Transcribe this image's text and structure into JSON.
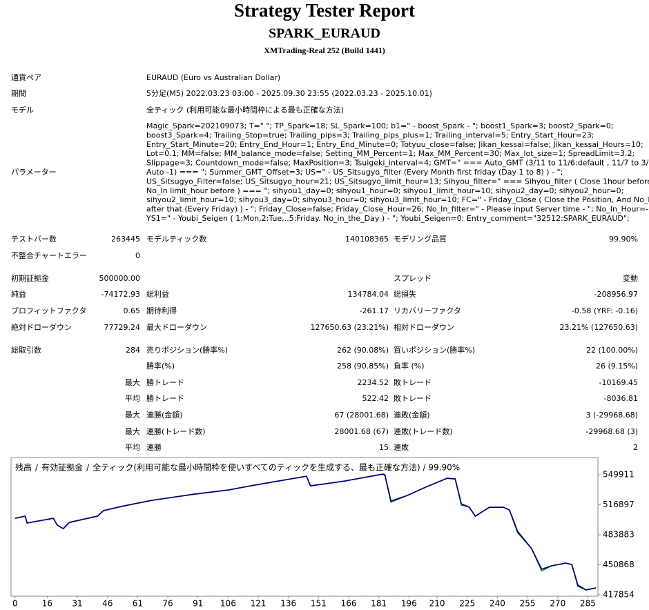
{
  "header": {
    "title": "Strategy Tester Report",
    "subtitle": "SPARK_EURAUD",
    "server": "XMTrading-Real 252 (Build 1441)"
  },
  "info": [
    {
      "label": "通貨ペア",
      "value": "EURAUD (Euro vs Australian Dollar)"
    },
    {
      "label": "期間",
      "value": "5分足(M5) 2022.03.23 03:00 - 2025.09.30 23:55 (2022.03.23 - 2025.10.01)"
    },
    {
      "label": "モデル",
      "value": "全ティック (利用可能な最小時間枠による最も正確な方法)"
    }
  ],
  "parameters": {
    "label": "パラメーター",
    "lines": [
      "Magic_Spark=202109073; T=\" \"; TP_Spark=18; SL_Spark=100; b1=\" - boost_Spark - \"; boost1_Spark=3; boost2_Spark=0;",
      "boost3_Spark=4; Trailing_Stop=true; Trailing_pips=3; Trailing_pips_plus=1; Trailing_interval=5; Entry_Start_Hour=23;",
      "Entry_Start_Minute=20; Entry_End_Hour=1; Entry_End_Minute=0; Totyuu_close=false; Jikan_kessai=false; Jikan_kessai_Hours=10;",
      "Lot=0.1; MM=false; MM_balance_mode=false; Setting_MM_Percent=1; Max_MM_Percent=30; Max_lot_size=1; SpreadLimit=3.2;",
      "Slippage=3; Countdown_mode=false; MaxPosition=3; Tsuigeki_interval=4; GMT=\" === Auto_GMT (3/11 to 11/6:default , 11/7 to 3/10:",
      "Auto -1) === \"; Summer_GMT_Offset=3; US=\" - US_Sitsugyo_filter (Every Month first friday (Day 1 to 8) ) - \";",
      "US_Sitsugyo_Filter=false; US_Sitsugyo_hour=21; US_Sitsugyo_limit_hour=13; Sihyou_filter=\" === Sihyou_filter ( Close 1hour before,",
      "No_In limit_hour before ) === \"; sihyou1_day=0; sihyou1_hour=0; sihyou1_limit_hour=10; sihyou2_day=0; sihyou2_hour=0;",
      "sihyou2_limit_hour=10; sihyou3_day=0; sihyou3_hour=0; sihyou3_limit_hour=10; FC=\" - Friday_Close ( Close the Position, And No_In",
      "after that (Every Friday) ) - \"; Friday_Close=false; Friday_Close_Hour=26; No_In_filter=\" - Please input Server time - \"; No_In_Hour=-1;",
      "YS1=\" - Youbi_Seigen ( 1:Mon,2:Tue,..5:Friday. No_in_the_Day ) - \"; Youbi_Seigen=0; Entry_comment=\"32512:SPARK_EURAUD\";"
    ]
  },
  "stats": {
    "rows": [
      [
        "テストバー数",
        "263445",
        "モデルティック数",
        "140108365",
        "モデリング品質",
        "99.90%"
      ],
      [
        "不整合チャートエラー",
        "0",
        null,
        null,
        null,
        null
      ],
      [
        "初期証拠金",
        "500000.00",
        null,
        null,
        "スプレッド",
        "変動"
      ],
      [
        "純益",
        "-74172.93",
        "総利益",
        "134784.04",
        "総損失",
        "-208956.97"
      ],
      [
        "プロフィットファクタ",
        "0.65",
        "期待利得",
        "-261.17",
        "リカバリーファクタ",
        "-0.58 (YRF: -0.16)"
      ],
      [
        "絶対ドローダウン",
        "77729.24",
        "最大ドローダウン",
        "127650.63 (23.21%)",
        "相対ドローダウン",
        "23.21% (127650.63)"
      ],
      [
        "総取引数",
        "284",
        "売りポジション(勝率%)",
        "262 (90.08%)",
        "買いポジション(勝率%)",
        "22 (100.00%)"
      ],
      [
        null,
        null,
        "勝率(%)",
        "258 (90.85%)",
        "負率 (%)",
        "26 (9.15%)"
      ],
      [
        null,
        "最大",
        "勝トレード",
        "2234.52",
        "敗トレード",
        "-10169.45"
      ],
      [
        null,
        "平均",
        "勝トレード",
        "522.42",
        "敗トレード",
        "-8036.81"
      ],
      [
        null,
        "最大",
        "連勝(金額)",
        "67 (28001.68)",
        "連敗(金額)",
        "3 (-29968.68)"
      ],
      [
        null,
        "最大",
        "連勝(トレード数)",
        "28001.68 (67)",
        "連敗(トレード数)",
        "-29968.68 (3)"
      ],
      [
        null,
        "平均",
        "連勝",
        "15",
        "連敗",
        "2"
      ]
    ]
  },
  "chart_data": {
    "type": "line",
    "title": "全ティック(利用可能な最小時間枠を使いすべてのティックを生成する、最も正確な方法) / 99.90%",
    "separator": "/",
    "x": [
      0,
      5,
      6,
      19,
      21,
      24,
      27,
      41,
      44,
      54,
      68,
      89,
      106,
      119,
      137,
      145,
      147,
      164,
      183,
      184,
      187,
      195,
      205,
      215,
      219,
      222,
      226,
      229,
      236,
      243,
      246,
      250,
      257,
      262,
      267,
      274,
      277,
      280,
      284,
      289
    ],
    "series": [
      {
        "name": "残高",
        "color": "#000080",
        "values": [
          502100,
          504400,
          496800,
          502100,
          494500,
          490700,
          497500,
          504400,
          510500,
          515700,
          521800,
          528600,
          533200,
          538500,
          545400,
          548400,
          537800,
          543100,
          550700,
          549900,
          521100,
          527100,
          537000,
          546100,
          545400,
          518000,
          514200,
          504400,
          514200,
          514200,
          511000,
          487700,
          468700,
          445900,
          449700,
          452800,
          451200,
          428500,
          423200,
          425400
        ]
      },
      {
        "name": "有効証拠金",
        "color": "#008000",
        "values": [
          502100,
          504400,
          496800,
          502100,
          494500,
          490700,
          497500,
          504400,
          510500,
          515700,
          521800,
          528600,
          533200,
          538500,
          545400,
          548400,
          537800,
          543100,
          550700,
          549000,
          519500,
          527100,
          537000,
          546100,
          545400,
          516500,
          514200,
          504400,
          514200,
          514200,
          511000,
          486000,
          468700,
          444000,
          449700,
          452800,
          451200,
          427000,
          423200,
          425400
        ]
      }
    ],
    "xlim": [
      -2,
      290
    ],
    "ylim": [
      416300,
      569000
    ],
    "xticks": [
      0,
      16,
      31,
      46,
      61,
      76,
      91,
      106,
      121,
      136,
      151,
      166,
      181,
      196,
      210,
      225,
      240,
      255,
      270,
      285
    ],
    "yticks": [
      417854,
      450868,
      483883,
      516897,
      549911
    ]
  }
}
